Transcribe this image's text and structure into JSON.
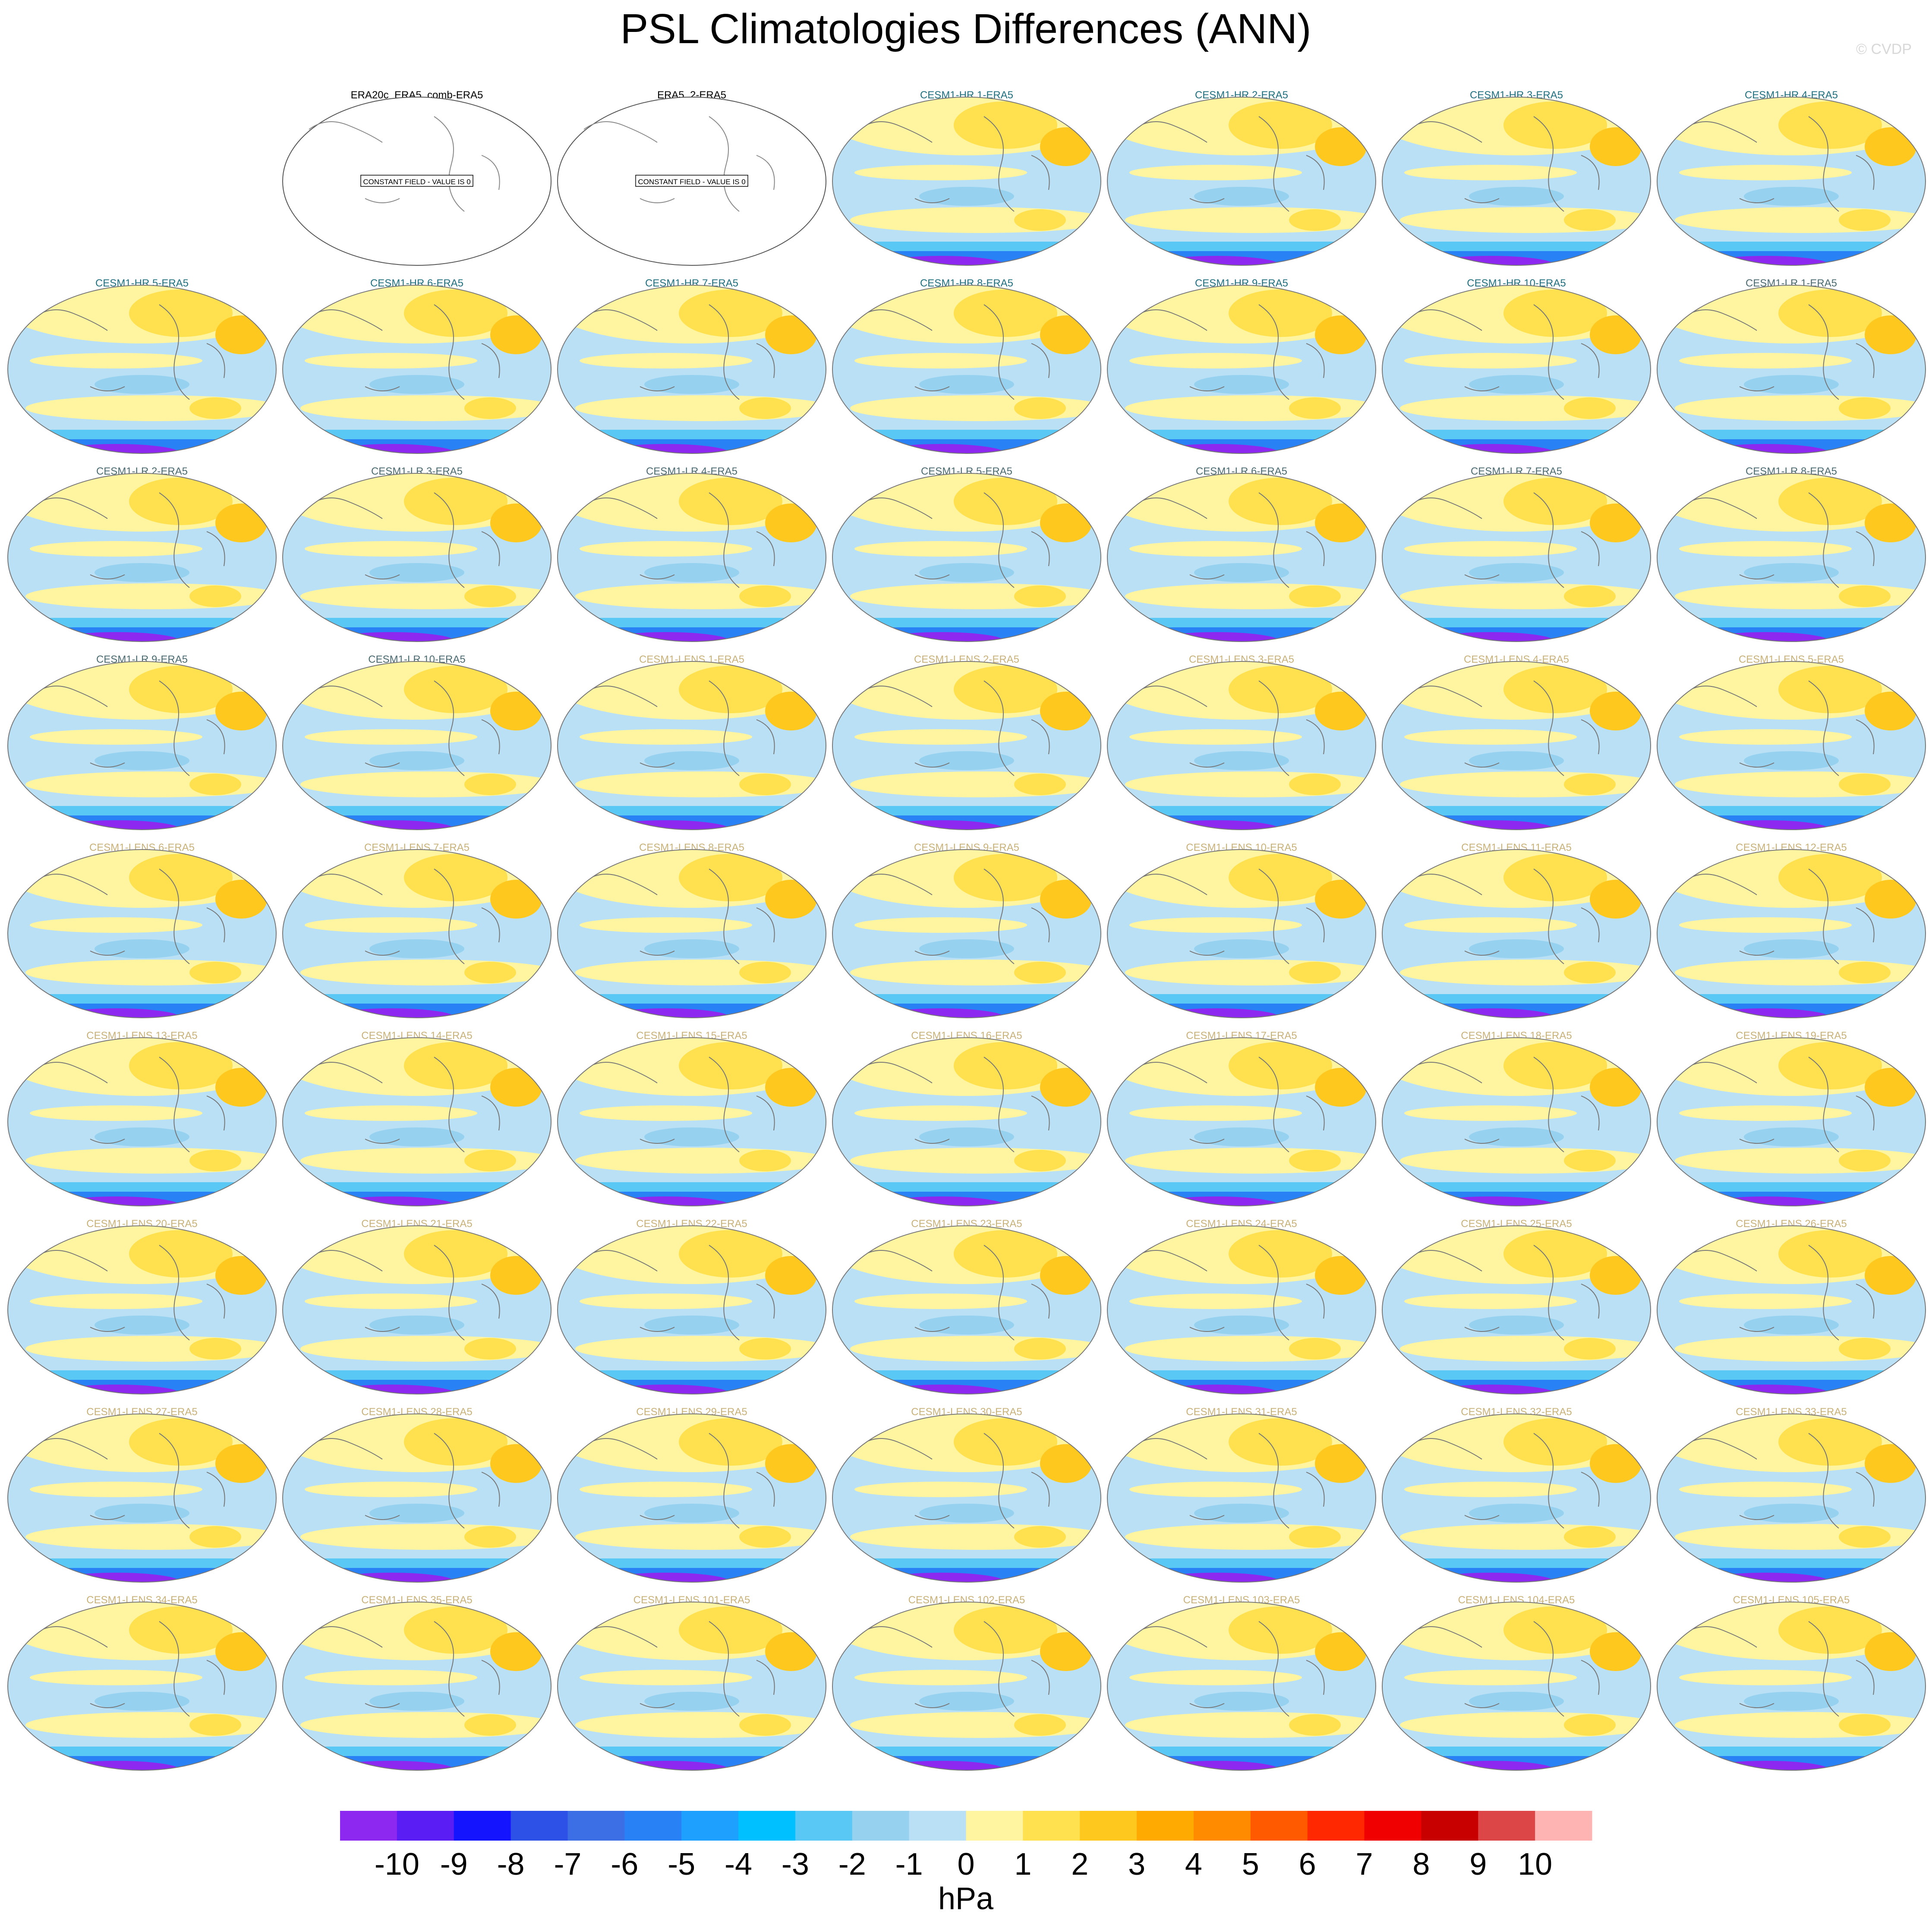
{
  "title": "PSL Climatologies Differences (ANN)",
  "watermark": "© CVDP",
  "groups": [
    {
      "color": "#000000",
      "note": "CONSTANT FIELD - VALUE IS 0",
      "titles": [
        "ERA20c_ERA5_comb-ERA5",
        "ERA5_2-ERA5"
      ]
    },
    {
      "color": "#1f6f7f",
      "titles": [
        "CESM1-HR 1-ERA5",
        "CESM1-HR 2-ERA5",
        "CESM1-HR 3-ERA5",
        "CESM1-HR 4-ERA5",
        "CESM1-HR 5-ERA5",
        "CESM1-HR 6-ERA5",
        "CESM1-HR 7-ERA5",
        "CESM1-HR 8-ERA5",
        "CESM1-HR 9-ERA5",
        "CESM1-HR 10-ERA5"
      ]
    },
    {
      "color": "#4a6a70",
      "titles": [
        "CESM1-LR 1-ERA5",
        "CESM1-LR 2-ERA5",
        "CESM1-LR 3-ERA5",
        "CESM1-LR 4-ERA5",
        "CESM1-LR 5-ERA5",
        "CESM1-LR 6-ERA5",
        "CESM1-LR 7-ERA5",
        "CESM1-LR 8-ERA5",
        "CESM1-LR 9-ERA5",
        "CESM1-LR 10-ERA5"
      ]
    },
    {
      "color": "#c9b27a",
      "titles": [
        "CESM1-LENS 1-ERA5",
        "CESM1-LENS 2-ERA5",
        "CESM1-LENS 3-ERA5",
        "CESM1-LENS 4-ERA5",
        "CESM1-LENS 5-ERA5",
        "CESM1-LENS 6-ERA5",
        "CESM1-LENS 7-ERA5",
        "CESM1-LENS 8-ERA5",
        "CESM1-LENS 9-ERA5",
        "CESM1-LENS 10-ERA5",
        "CESM1-LENS 11-ERA5",
        "CESM1-LENS 12-ERA5",
        "CESM1-LENS 13-ERA5",
        "CESM1-LENS 14-ERA5",
        "CESM1-LENS 15-ERA5",
        "CESM1-LENS 16-ERA5",
        "CESM1-LENS 17-ERA5",
        "CESM1-LENS 18-ERA5",
        "CESM1-LENS 19-ERA5",
        "CESM1-LENS 20-ERA5",
        "CESM1-LENS 21-ERA5",
        "CESM1-LENS 22-ERA5",
        "CESM1-LENS 23-ERA5",
        "CESM1-LENS 24-ERA5",
        "CESM1-LENS 25-ERA5",
        "CESM1-LENS 26-ERA5",
        "CESM1-LENS 27-ERA5",
        "CESM1-LENS 28-ERA5",
        "CESM1-LENS 29-ERA5",
        "CESM1-LENS 30-ERA5",
        "CESM1-LENS 31-ERA5",
        "CESM1-LENS 32-ERA5",
        "CESM1-LENS 33-ERA5",
        "CESM1-LENS 34-ERA5",
        "CESM1-LENS 35-ERA5",
        "CESM1-LENS 101-ERA5",
        "CESM1-LENS 102-ERA5",
        "CESM1-LENS 103-ERA5",
        "CESM1-LENS 104-ERA5",
        "CESM1-LENS 105-ERA5"
      ]
    }
  ],
  "colorbar": {
    "label": "hPa",
    "levels": [
      -10,
      -9,
      -8,
      -7,
      -6,
      -5,
      -4,
      -3,
      -2,
      -1,
      0,
      1,
      2,
      3,
      4,
      5,
      6,
      7,
      8,
      9,
      10
    ],
    "colors": [
      "#8c28f0",
      "#5a1ef5",
      "#1414ff",
      "#2d50e6",
      "#3c6ee6",
      "#2882f5",
      "#1ea0ff",
      "#00c0ff",
      "#5ac8f5",
      "#96d2f0",
      "#b9e0f5",
      "#fff5a0",
      "#ffe150",
      "#ffc81e",
      "#ffaa00",
      "#ff8c00",
      "#ff5a00",
      "#ff2800",
      "#f00000",
      "#c80000",
      "#dc4646",
      "#ffb4b4"
    ]
  }
}
